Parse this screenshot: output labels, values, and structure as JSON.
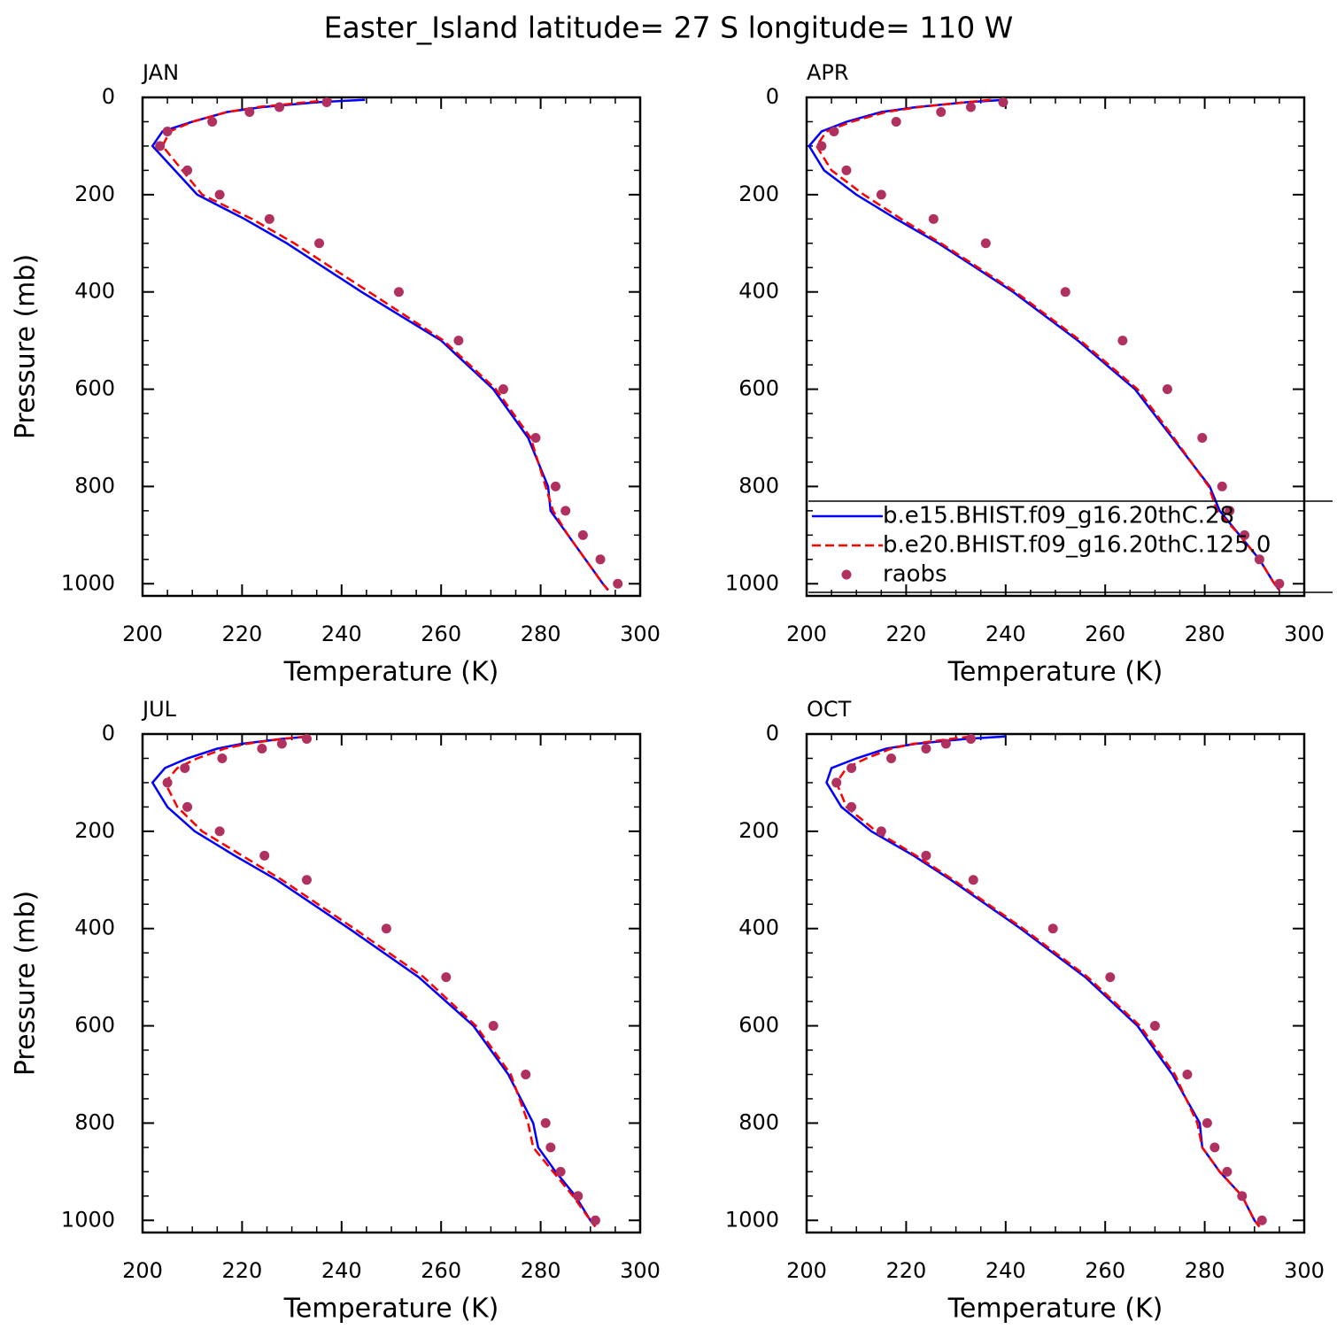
{
  "title": "Easter_Island  latitude= 27 S longitude= 110 W",
  "chart_data": [
    {
      "type": "line",
      "title": "JAN",
      "xlabel": "Temperature (K)",
      "ylabel": "Pressure (mb)",
      "xlim": [
        200,
        300
      ],
      "xticks": [
        200,
        220,
        240,
        260,
        280,
        300
      ],
      "ylim": [
        1025,
        0
      ],
      "yticks": [
        0,
        200,
        400,
        600,
        800,
        1000
      ],
      "y": [
        5,
        10,
        20,
        30,
        50,
        70,
        100,
        150,
        200,
        250,
        300,
        400,
        500,
        600,
        700,
        800,
        850,
        900,
        950,
        1000,
        1013
      ],
      "series": [
        {
          "color": "#0000ff",
          "style": "solid",
          "values": [
            244.7,
            235,
            224,
            217,
            210,
            204,
            202,
            206.5,
            211,
            220.5,
            229,
            244,
            260,
            270.5,
            277.5,
            281.5,
            282,
            285.5,
            289,
            292.5,
            293.6
          ]
        },
        {
          "color": "#ff0000",
          "style": "dashed",
          "values": [
            238,
            233,
            223,
            217,
            210,
            205.5,
            204,
            208,
            212,
            222,
            230.5,
            245.5,
            260.5,
            271,
            278,
            281,
            282.5,
            285.5,
            289,
            292.5,
            293.5
          ]
        },
        {
          "color": "#b03060",
          "style": "dots",
          "values": [
            null,
            237,
            227.5,
            221.5,
            214,
            205,
            203.5,
            209,
            215.5,
            225.5,
            235.5,
            251.5,
            263.5,
            272.5,
            279,
            283,
            285,
            288.5,
            292,
            295.5,
            null
          ]
        }
      ]
    },
    {
      "type": "line",
      "title": "APR",
      "xlabel": "Temperature (K)",
      "legend": "lower right",
      "xlim": [
        200,
        300
      ],
      "xticks": [
        200,
        220,
        240,
        260,
        280,
        300
      ],
      "ylim": [
        1025,
        0
      ],
      "yticks": [
        0,
        200,
        400,
        600,
        800,
        1000
      ],
      "y": [
        5,
        10,
        20,
        30,
        50,
        70,
        100,
        150,
        200,
        250,
        300,
        400,
        500,
        600,
        700,
        800,
        850,
        900,
        950,
        1000,
        1013
      ],
      "series": [
        {
          "name": "b.e15.BHIST.f09_g16.20thC.28",
          "color": "#0000ff",
          "style": "solid",
          "values": [
            239.9,
            232,
            222,
            215,
            208,
            203,
            200.5,
            203.5,
            210,
            218,
            226.5,
            241.5,
            254.5,
            266,
            273.5,
            281,
            283,
            287,
            291,
            294,
            295
          ]
        },
        {
          "name": "b.e20.BHIST.f09_g16.20thC.125.0",
          "color": "#ff0000",
          "style": "dashed",
          "values": [
            237,
            232,
            222.5,
            216,
            209,
            204,
            202,
            205,
            211.5,
            219,
            227,
            242,
            255,
            266.5,
            273.8,
            280.8,
            282.5,
            287,
            291,
            294,
            295
          ]
        },
        {
          "name": "raobs",
          "color": "#b03060",
          "style": "dots",
          "values": [
            null,
            239.5,
            233,
            227,
            218,
            205.5,
            203,
            208,
            215,
            225.5,
            236,
            252,
            263.5,
            272.5,
            279.5,
            283.5,
            285,
            288,
            291,
            295,
            null
          ]
        }
      ]
    },
    {
      "type": "line",
      "title": "JUL",
      "xlabel": "Temperature (K)",
      "ylabel": "Pressure (mb)",
      "xlim": [
        200,
        300
      ],
      "xticks": [
        200,
        220,
        240,
        260,
        280,
        300
      ],
      "ylim": [
        1025,
        0
      ],
      "yticks": [
        0,
        200,
        400,
        600,
        800,
        1000
      ],
      "y": [
        5,
        10,
        20,
        30,
        50,
        70,
        100,
        150,
        200,
        250,
        300,
        400,
        500,
        600,
        700,
        800,
        850,
        900,
        950,
        1000,
        1013
      ],
      "series": [
        {
          "color": "#0000ff",
          "style": "solid",
          "values": [
            233.6,
            228,
            220,
            215,
            209,
            204.5,
            202,
            205,
            210.5,
            218.5,
            227,
            241.5,
            255.5,
            266.5,
            273.5,
            278.5,
            279.5,
            283,
            287,
            290,
            291
          ]
        },
        {
          "color": "#ff0000",
          "style": "dashed",
          "values": [
            233,
            228,
            221,
            216.5,
            211,
            207,
            204.5,
            207,
            212,
            220,
            228,
            242.5,
            256.5,
            267,
            274,
            277.5,
            278.5,
            282.5,
            286.5,
            290,
            291
          ]
        },
        {
          "color": "#b03060",
          "style": "dots",
          "values": [
            null,
            233,
            228,
            224,
            216,
            208.5,
            205,
            209,
            215.5,
            224.5,
            233,
            249,
            261,
            270.5,
            277,
            281,
            282,
            284,
            287.5,
            291,
            null
          ]
        }
      ]
    },
    {
      "type": "line",
      "title": "OCT",
      "xlabel": "Temperature (K)",
      "xlim": [
        200,
        300
      ],
      "xticks": [
        200,
        220,
        240,
        260,
        280,
        300
      ],
      "ylim": [
        1025,
        0
      ],
      "yticks": [
        0,
        200,
        400,
        600,
        800,
        1000
      ],
      "y": [
        5,
        10,
        20,
        30,
        50,
        70,
        100,
        150,
        200,
        250,
        300,
        400,
        500,
        600,
        700,
        800,
        850,
        900,
        950,
        1000,
        1013
      ],
      "series": [
        {
          "color": "#0000ff",
          "style": "solid",
          "values": [
            240,
            232,
            222,
            216,
            210,
            205,
            204,
            207,
            213,
            221.5,
            229,
            243,
            256,
            266.5,
            273.5,
            279,
            279.5,
            283,
            287.5,
            290,
            291
          ]
        },
        {
          "color": "#ff0000",
          "style": "dashed",
          "values": [
            233,
            229,
            221.5,
            217,
            212,
            208,
            206,
            208,
            214,
            222,
            229.5,
            243.5,
            256.5,
            267,
            274,
            278.5,
            279.5,
            283,
            287.5,
            290,
            291
          ]
        },
        {
          "color": "#b03060",
          "style": "dots",
          "values": [
            null,
            233,
            228,
            224,
            217,
            209,
            206,
            209,
            215,
            224,
            233.5,
            249.5,
            261,
            270,
            276.5,
            280.5,
            282,
            284.5,
            287.5,
            291.5,
            null
          ]
        }
      ]
    }
  ]
}
